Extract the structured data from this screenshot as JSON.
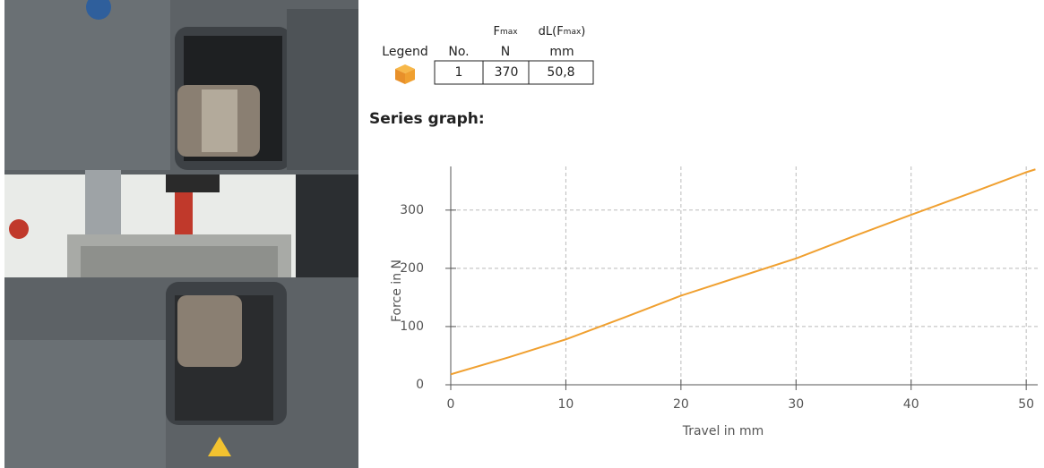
{
  "heading": "Series graph:",
  "table": {
    "legend_header": "Legend",
    "columns": [
      {
        "label": "No."
      },
      {
        "symbol": "F",
        "sub": "max",
        "unit": "N"
      },
      {
        "symbol": "dL(F",
        "sub": "max",
        "end": ")",
        "unit": "mm"
      }
    ],
    "rows": [
      [
        "1",
        "370",
        "50,8"
      ]
    ]
  },
  "chart_data": {
    "type": "line",
    "x_label": "Travel in mm",
    "y_label": "Force in N",
    "x": [
      0,
      5,
      10,
      15,
      20,
      25,
      30,
      35,
      40,
      45,
      50,
      50.8
    ],
    "series": [
      {
        "color": "#f0a030",
        "values": [
          18,
          47,
          78,
          115,
          153,
          185,
          217,
          255,
          292,
          328,
          365,
          370
        ]
      }
    ],
    "xlim": [
      0,
      51
    ],
    "ylim": [
      0,
      375
    ],
    "xticks": [
      0,
      10,
      20,
      30,
      40,
      50
    ],
    "yticks": [
      0,
      100,
      200,
      300
    ],
    "grid": true
  }
}
